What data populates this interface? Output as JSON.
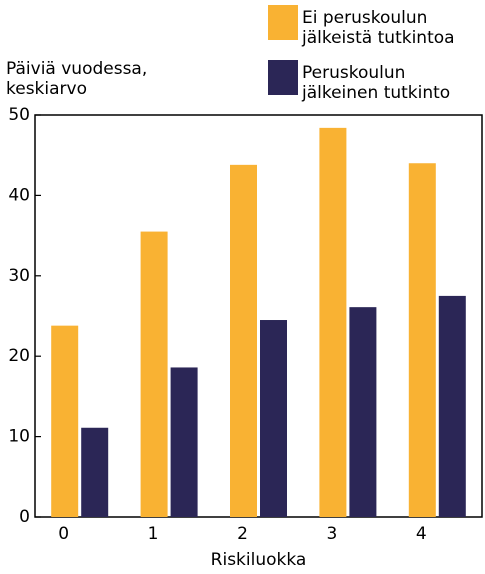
{
  "chart_data": {
    "type": "bar",
    "y_label": "Päiviä vuodessa, keskiarvo",
    "x_label": "Riskiluokka",
    "categories": [
      "0",
      "1",
      "2",
      "3",
      "4"
    ],
    "series": [
      {
        "name": "Ei peruskoulun jälkeistä tutkintoa",
        "color": "#f9b233",
        "values": [
          23.8,
          35.5,
          43.8,
          48.4,
          44.0
        ]
      },
      {
        "name": "Peruskoulun jälkeinen tutkinto",
        "color": "#2b2656",
        "values": [
          11.1,
          18.6,
          24.5,
          26.1,
          27.5
        ]
      }
    ],
    "ylim": [
      0,
      50
    ],
    "yticks": [
      0,
      10,
      20,
      30,
      40,
      50
    ],
    "grid": false
  }
}
